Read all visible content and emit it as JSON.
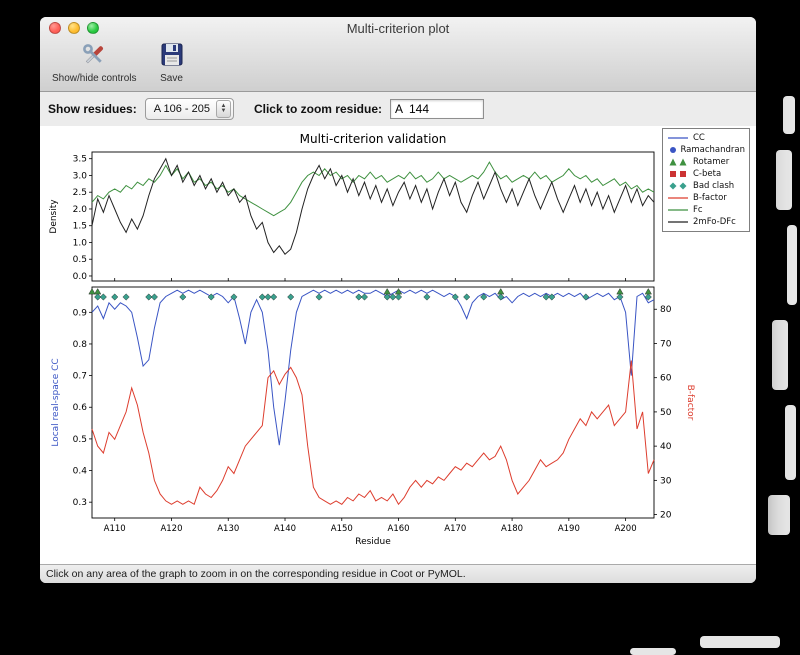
{
  "window": {
    "title": "Multi-criterion plot"
  },
  "toolbar": {
    "show_hide_label": "Show/hide controls",
    "save_label": "Save"
  },
  "controls": {
    "show_residues_label": "Show residues:",
    "show_residues_value": "A 106 - 205",
    "zoom_label": "Click to zoom residue:",
    "zoom_value": "A  144"
  },
  "status_bar": {
    "text": "Click on any area of the graph to zoom in on the corresponding residue in Coot or PyMOL."
  },
  "colors": {
    "cc_blue": "#3a55c4",
    "bfactor_red": "#dd3d2e",
    "fc_green": "#3f9140",
    "map_black": "#222222",
    "clash_teal": "#3aa08d"
  },
  "chart_data": [
    {
      "type": "line",
      "title": "Multi-criterion validation",
      "ylabel": "Density",
      "yticks": [
        0.0,
        0.5,
        1.0,
        1.5,
        2.0,
        2.5,
        3.0,
        3.5
      ],
      "ylim": [
        -0.15,
        3.7
      ],
      "x_start": 106,
      "x_end": 205,
      "series": [
        {
          "name": "Fc",
          "color": "#3f9140",
          "values": [
            2.2,
            2.4,
            2.3,
            2.5,
            2.6,
            2.5,
            2.7,
            2.6,
            2.8,
            2.7,
            2.9,
            2.8,
            3.0,
            3.3,
            3.0,
            3.2,
            2.9,
            3.1,
            2.8,
            2.9,
            2.7,
            2.8,
            2.6,
            2.7,
            2.5,
            2.6,
            2.4,
            2.3,
            2.2,
            2.1,
            2.0,
            1.9,
            1.8,
            1.9,
            2.0,
            2.2,
            2.5,
            2.8,
            3.0,
            3.1,
            3.0,
            3.2,
            3.0,
            3.1,
            2.9,
            3.0,
            2.8,
            3.0,
            2.9,
            3.1,
            2.9,
            3.0,
            2.8,
            2.9,
            3.0,
            2.9,
            3.1,
            2.9,
            3.0,
            2.8,
            2.9,
            3.1,
            2.9,
            3.0,
            2.9,
            2.8,
            2.9,
            3.0,
            2.9,
            3.1,
            3.4,
            3.1,
            2.9,
            3.0,
            2.8,
            2.9,
            3.0,
            2.9,
            3.1,
            2.9,
            3.0,
            2.8,
            2.9,
            3.0,
            3.2,
            3.0,
            2.9,
            3.0,
            2.8,
            2.9,
            2.7,
            2.8,
            2.9,
            2.7,
            2.8,
            2.6,
            2.7,
            2.5,
            2.6,
            2.5
          ]
        },
        {
          "name": "2mFo-DFc",
          "color": "#222222",
          "values": [
            1.5,
            2.3,
            1.9,
            2.4,
            2.0,
            1.6,
            1.3,
            1.7,
            1.4,
            1.8,
            2.4,
            2.9,
            3.2,
            3.5,
            3.0,
            3.3,
            2.8,
            3.1,
            2.7,
            3.0,
            2.6,
            2.9,
            2.5,
            2.8,
            2.4,
            2.6,
            2.2,
            2.4,
            1.8,
            1.4,
            1.6,
            1.0,
            0.7,
            0.9,
            0.65,
            0.8,
            1.3,
            2.0,
            2.6,
            3.0,
            3.3,
            2.9,
            3.2,
            2.7,
            3.0,
            2.5,
            2.9,
            2.4,
            2.8,
            2.3,
            2.7,
            2.2,
            2.6,
            2.1,
            2.5,
            2.8,
            2.3,
            2.7,
            2.2,
            2.6,
            2.0,
            2.5,
            2.9,
            2.4,
            2.8,
            2.2,
            1.9,
            2.4,
            2.8,
            2.3,
            2.7,
            3.1,
            2.6,
            2.2,
            2.6,
            2.1,
            2.5,
            2.9,
            2.4,
            2.0,
            2.4,
            2.8,
            2.3,
            1.9,
            2.3,
            2.7,
            2.2,
            2.6,
            2.1,
            2.5,
            2.0,
            2.4,
            1.9,
            2.3,
            2.7,
            2.2,
            2.6,
            2.1,
            2.4,
            2.2
          ]
        }
      ]
    },
    {
      "type": "line",
      "xlabel": "Residue",
      "xticks": [
        "A110",
        "A120",
        "A130",
        "A140",
        "A150",
        "A160",
        "A170",
        "A180",
        "A190",
        "A200"
      ],
      "xtick_residues": [
        110,
        120,
        130,
        140,
        150,
        160,
        170,
        180,
        190,
        200
      ],
      "x_start": 106,
      "x_end": 205,
      "ylabel_left": "Local real-space CC",
      "ylabel_left_color": "#3a55c4",
      "yticks_left": [
        0.3,
        0.4,
        0.5,
        0.6,
        0.7,
        0.8,
        0.9
      ],
      "ylim_left": [
        0.25,
        0.98
      ],
      "ylabel_right": "B-factor",
      "ylabel_right_color": "#dd3d2e",
      "yticks_right": [
        20,
        30,
        40,
        50,
        60,
        70,
        80
      ],
      "ylim_right": [
        19,
        86.5
      ],
      "series": [
        {
          "name": "CC",
          "axis": "left",
          "color": "#3a55c4",
          "values": [
            0.9,
            0.92,
            0.88,
            0.93,
            0.91,
            0.93,
            0.92,
            0.9,
            0.82,
            0.73,
            0.75,
            0.85,
            0.93,
            0.95,
            0.96,
            0.97,
            0.96,
            0.97,
            0.96,
            0.97,
            0.96,
            0.95,
            0.96,
            0.95,
            0.93,
            0.95,
            0.88,
            0.8,
            0.9,
            0.94,
            0.9,
            0.78,
            0.6,
            0.48,
            0.62,
            0.78,
            0.9,
            0.95,
            0.96,
            0.97,
            0.96,
            0.97,
            0.96,
            0.97,
            0.96,
            0.97,
            0.96,
            0.97,
            0.96,
            0.96,
            0.97,
            0.96,
            0.95,
            0.96,
            0.97,
            0.96,
            0.97,
            0.96,
            0.97,
            0.96,
            0.97,
            0.96,
            0.95,
            0.96,
            0.95,
            0.92,
            0.88,
            0.93,
            0.95,
            0.96,
            0.95,
            0.96,
            0.94,
            0.95,
            0.93,
            0.95,
            0.96,
            0.95,
            0.96,
            0.95,
            0.96,
            0.95,
            0.96,
            0.95,
            0.96,
            0.95,
            0.96,
            0.94,
            0.95,
            0.96,
            0.95,
            0.96,
            0.94,
            0.95,
            0.9,
            0.7,
            0.95,
            0.96,
            0.93,
            0.94
          ]
        },
        {
          "name": "B-factor",
          "axis": "right",
          "color": "#dd3d2e",
          "values": [
            45,
            40,
            38,
            44,
            42,
            46,
            50,
            57,
            52,
            44,
            38,
            30,
            26,
            24,
            23,
            24,
            23,
            24,
            23,
            28,
            26,
            25,
            27,
            30,
            34,
            32,
            36,
            40,
            42,
            44,
            46,
            60,
            62,
            58,
            61,
            63,
            60,
            55,
            40,
            28,
            25,
            24,
            23,
            24,
            23,
            25,
            24,
            26,
            25,
            27,
            24,
            25,
            24,
            26,
            23,
            25,
            28,
            30,
            28,
            30,
            29,
            31,
            30,
            32,
            34,
            33,
            35,
            34,
            36,
            38,
            36,
            37,
            40,
            36,
            30,
            26,
            28,
            30,
            33,
            36,
            34,
            35,
            36,
            38,
            42,
            45,
            48,
            46,
            50,
            48,
            50,
            52,
            46,
            48,
            50,
            65,
            45,
            50,
            32,
            36
          ]
        }
      ],
      "markers": [
        {
          "name": "Rotamer",
          "shape": "triangle",
          "color": "#3f9140",
          "residues": [
            106,
            107,
            158,
            160,
            178,
            199,
            204
          ]
        },
        {
          "name": "Bad clash",
          "shape": "diamond",
          "color": "#3aa08d",
          "residues": [
            107,
            108,
            110,
            112,
            116,
            117,
            122,
            127,
            131,
            136,
            137,
            138,
            141,
            146,
            153,
            154,
            158,
            159,
            160,
            165,
            170,
            172,
            175,
            178,
            186,
            187,
            193,
            199,
            204
          ]
        }
      ]
    }
  ],
  "legend": [
    {
      "label": "CC",
      "type": "line",
      "color": "#3a55c4"
    },
    {
      "label": "Ramachandran",
      "type": "circle",
      "color": "#3a55c4"
    },
    {
      "label": "Rotamer",
      "type": "triangle",
      "color": "#3f9140"
    },
    {
      "label": "C-beta",
      "type": "square",
      "color": "#cc3333"
    },
    {
      "label": "Bad clash",
      "type": "diamond",
      "color": "#3aa08d"
    },
    {
      "label": "B-factor",
      "type": "line",
      "color": "#dd3d2e"
    },
    {
      "label": "Fc",
      "type": "line",
      "color": "#3f9140"
    },
    {
      "label": "2mFo-DFc",
      "type": "line",
      "color": "#222222"
    }
  ]
}
